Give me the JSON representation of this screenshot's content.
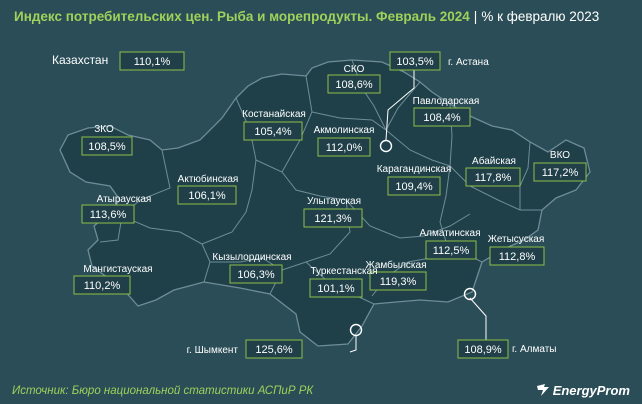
{
  "header": {
    "title": "Индекс потребительских цен. Рыба и морепродукты. Февраль 2024",
    "separator": "|",
    "subtitle": "% к февралю 2023"
  },
  "colors": {
    "background": "#2b4d57",
    "region_fill": "#1f4049",
    "region_border": "#6d8d97",
    "label_border": "#8ec04a",
    "title_green": "#9ed25a"
  },
  "country": {
    "name": "Казахстан",
    "value": "110,1%"
  },
  "regions": [
    {
      "id": "sko",
      "name": "СКО",
      "value": "108,6%"
    },
    {
      "id": "astana",
      "name": "г. Астана",
      "value": "103,5%"
    },
    {
      "id": "pavlodar",
      "name": "Павлодарская",
      "value": "108,4%"
    },
    {
      "id": "kostanay",
      "name": "Костанайская",
      "value": "105,4%"
    },
    {
      "id": "akmola",
      "name": "Акмолинская",
      "value": "112,0%"
    },
    {
      "id": "zko",
      "name": "ЗКО",
      "value": "108,5%"
    },
    {
      "id": "aktobe",
      "name": "Актюбинская",
      "value": "106,1%"
    },
    {
      "id": "abay",
      "name": "Абайская",
      "value": "117,8%"
    },
    {
      "id": "vko",
      "name": "ВКО",
      "value": "117,2%"
    },
    {
      "id": "karaganda",
      "name": "Карагандинская",
      "value": "109,4%"
    },
    {
      "id": "atyrau",
      "name": "Атырауская",
      "value": "113,6%"
    },
    {
      "id": "ulytau",
      "name": "Улытауская",
      "value": "121,3%"
    },
    {
      "id": "almaty_reg",
      "name": "Алматинская",
      "value": "112,5%"
    },
    {
      "id": "zhetysu",
      "name": "Жетысуская",
      "value": "112,8%"
    },
    {
      "id": "mangystau",
      "name": "Мангистауская",
      "value": "110,2%"
    },
    {
      "id": "kyzylorda",
      "name": "Кызылординская",
      "value": "106,3%"
    },
    {
      "id": "zhambyl",
      "name": "Жамбылская",
      "value": "119,3%"
    },
    {
      "id": "turkestan",
      "name": "Туркестанская",
      "value": "101,1%"
    },
    {
      "id": "shymkent",
      "name": "г. Шымкент",
      "value": "125,6%"
    },
    {
      "id": "almaty",
      "name": "г. Алматы",
      "value": "108,9%"
    }
  ],
  "footer": {
    "source": "Источник: Бюро национальной статистики АСПиР РК",
    "logo": "EnergyProm",
    "logo_icon": "energyprom-logo-icon"
  }
}
